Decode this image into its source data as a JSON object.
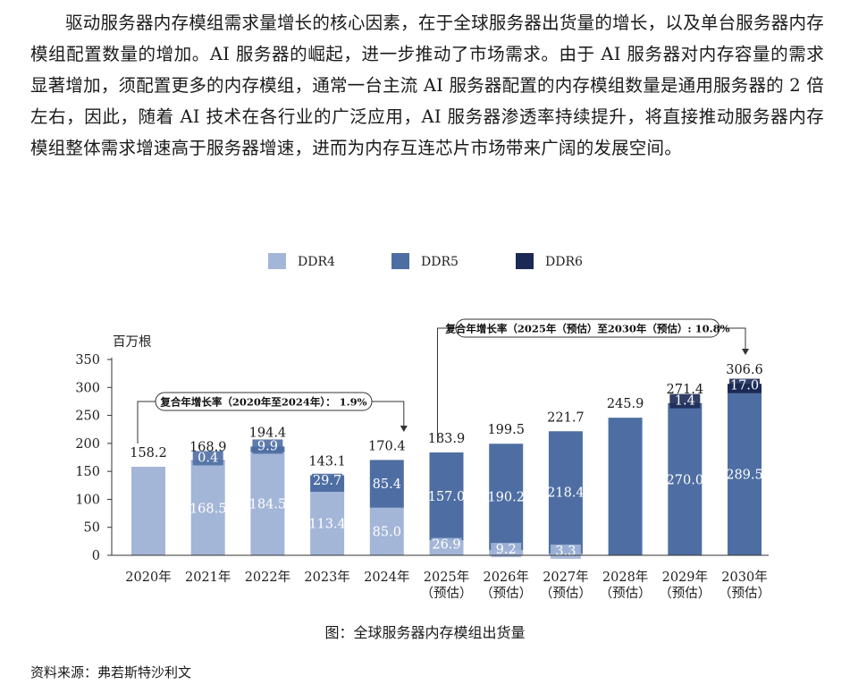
{
  "paragraph": "驱动服务器内存模组需求量增长的核心因素，在于全球服务器出货量的增长，以及单台服务器内存模组配置数量的增加。AI 服务器的崛起，进一步推动了市场需求。由于 AI 服务器对内存容量的需求显著增加，须配置更多的内存模组，通常一台主流 AI 服务器配置的内存模组数量是通用服务器的 2 倍左右，因此，随着 AI 技术在各行业的广泛应用，AI 服务器渗透率持续提升，将直接推动服务器内存模组整体需求增速高于服务器增速，进而为内存互连芯片市场带来广阔的发展空间。",
  "caption": "图：全球服务器内存模组出货量",
  "source": "资料来源：弗若斯特沙利文",
  "colors": {
    "ddr4": "#a3b6d8",
    "ddr5": "#4e6ea3",
    "ddr6": "#1b2a55",
    "axis": "#333333"
  },
  "chart_data": {
    "type": "bar",
    "stacked": true,
    "ylabel": "百万根",
    "ylim": [
      0,
      350
    ],
    "yticks": [
      0,
      50,
      100,
      150,
      200,
      250,
      300,
      350
    ],
    "grid": false,
    "legend_position": "top-center",
    "categories": [
      [
        "2020年"
      ],
      [
        "2021年"
      ],
      [
        "2022年"
      ],
      [
        "2023年"
      ],
      [
        "2024年"
      ],
      [
        "2025年",
        "（预估）"
      ],
      [
        "2026年",
        "（预估）"
      ],
      [
        "2027年",
        "（预估）"
      ],
      [
        "2028年",
        "（预估）"
      ],
      [
        "2029年",
        "（预估）"
      ],
      [
        "2030年",
        "（预估）"
      ]
    ],
    "series": [
      {
        "name": "DDR4",
        "color": "#a3b6d8",
        "values": [
          158.2,
          168.5,
          184.5,
          113.4,
          85.0,
          26.9,
          9.2,
          3.3,
          0,
          0,
          0
        ],
        "labels": [
          "",
          "168.5",
          "184.5",
          "113.4",
          "85.0",
          "26.9",
          "9.2",
          "3.3",
          "",
          "",
          ""
        ]
      },
      {
        "name": "DDR5",
        "color": "#4e6ea3",
        "values": [
          0,
          0.4,
          9.9,
          29.7,
          85.4,
          157.0,
          190.2,
          218.4,
          245.9,
          270.0,
          289.5
        ],
        "labels": [
          "",
          "0.4",
          "9.9",
          "29.7",
          "85.4",
          "157.0",
          "190.2",
          "218.4",
          "",
          "270.0",
          "289.5"
        ]
      },
      {
        "name": "DDR6",
        "color": "#1b2a55",
        "values": [
          0,
          0,
          0,
          0,
          0,
          0,
          0,
          0,
          0,
          1.4,
          17.0
        ],
        "labels": [
          "",
          "",
          "",
          "",
          "",
          "",
          "",
          "",
          "",
          "1.4",
          "17.0"
        ]
      }
    ],
    "totals": [
      "158.2",
      "168.9",
      "194.4",
      "143.1",
      "170.4",
      "183.9",
      "199.5",
      "221.7",
      "245.9",
      "271.4",
      "306.6"
    ],
    "annotations": [
      {
        "text": "复合年增长率（2020年至2024年）： 1.9%",
        "from_index": 0,
        "to_index": 4
      },
      {
        "text": "复合年增长率（2025年（预估）至2030年（预估）: 10.8%",
        "from_index": 5,
        "to_index": 10
      }
    ]
  }
}
